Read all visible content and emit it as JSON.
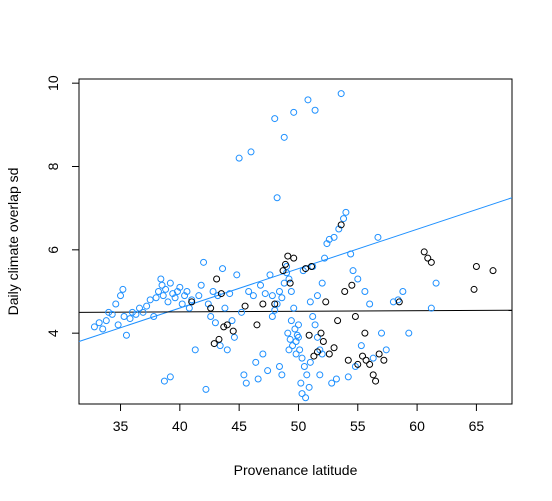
{
  "chart_data": {
    "type": "scatter",
    "title": "",
    "xlabel": "Provenance latitude",
    "ylabel": "Daily climate overlap sd",
    "xlim": [
      31.5,
      68
    ],
    "ylim": [
      2.3,
      10.1
    ],
    "x_ticks": [
      35,
      40,
      45,
      50,
      55,
      60,
      65
    ],
    "y_ticks": [
      4,
      6,
      8,
      10
    ],
    "grid": false,
    "legend": "none",
    "series": [
      {
        "color": "#1e90ff",
        "points": [
          [
            32.8,
            4.15
          ],
          [
            33.2,
            4.25
          ],
          [
            33.5,
            4.1
          ],
          [
            33.8,
            4.3
          ],
          [
            34.0,
            4.5
          ],
          [
            34.3,
            4.45
          ],
          [
            34.6,
            4.7
          ],
          [
            34.8,
            4.2
          ],
          [
            35.0,
            4.9
          ],
          [
            35.2,
            5.05
          ],
          [
            35.3,
            4.4
          ],
          [
            35.5,
            3.95
          ],
          [
            35.8,
            4.35
          ],
          [
            36.0,
            4.5
          ],
          [
            36.3,
            4.45
          ],
          [
            36.6,
            4.6
          ],
          [
            36.9,
            4.5
          ],
          [
            37.2,
            4.65
          ],
          [
            37.5,
            4.8
          ],
          [
            37.8,
            4.4
          ],
          [
            38.0,
            4.85
          ],
          [
            38.2,
            5.0
          ],
          [
            38.4,
            5.3
          ],
          [
            38.5,
            5.15
          ],
          [
            38.6,
            4.9
          ],
          [
            38.8,
            5.05
          ],
          [
            39.0,
            4.75
          ],
          [
            39.2,
            5.2
          ],
          [
            39.4,
            4.95
          ],
          [
            39.6,
            4.85
          ],
          [
            39.8,
            5.0
          ],
          [
            40.0,
            5.1
          ],
          [
            40.2,
            4.7
          ],
          [
            40.4,
            4.9
          ],
          [
            40.6,
            5.0
          ],
          [
            40.8,
            4.6
          ],
          [
            41.0,
            4.8
          ],
          [
            41.3,
            3.6
          ],
          [
            38.7,
            2.85
          ],
          [
            39.2,
            2.95
          ],
          [
            41.6,
            4.9
          ],
          [
            41.8,
            5.15
          ],
          [
            42.0,
            5.7
          ],
          [
            42.2,
            2.65
          ],
          [
            42.4,
            4.7
          ],
          [
            42.6,
            4.4
          ],
          [
            42.8,
            5.0
          ],
          [
            43.0,
            4.25
          ],
          [
            43.2,
            4.9
          ],
          [
            43.4,
            3.7
          ],
          [
            43.6,
            5.55
          ],
          [
            43.8,
            4.6
          ],
          [
            44.0,
            3.6
          ],
          [
            44.2,
            4.95
          ],
          [
            44.4,
            4.3
          ],
          [
            44.6,
            3.9
          ],
          [
            44.8,
            5.4
          ],
          [
            45.0,
            8.2
          ],
          [
            45.2,
            4.5
          ],
          [
            45.4,
            3.0
          ],
          [
            45.6,
            2.8
          ],
          [
            45.8,
            5.0
          ],
          [
            46.0,
            8.35
          ],
          [
            46.2,
            4.9
          ],
          [
            46.4,
            3.3
          ],
          [
            46.6,
            2.9
          ],
          [
            46.8,
            5.15
          ],
          [
            47.0,
            3.5
          ],
          [
            47.2,
            4.95
          ],
          [
            47.4,
            3.1
          ],
          [
            47.6,
            5.4
          ],
          [
            47.8,
            4.9
          ],
          [
            48.0,
            9.15
          ],
          [
            48.2,
            7.25
          ],
          [
            48.4,
            3.2
          ],
          [
            48.6,
            3.0
          ],
          [
            48.8,
            8.7
          ],
          [
            49.0,
            5.6
          ],
          [
            49.2,
            3.6
          ],
          [
            49.4,
            4.3
          ],
          [
            49.6,
            9.3
          ],
          [
            49.8,
            3.8
          ],
          [
            50.0,
            4.2
          ],
          [
            50.2,
            2.8
          ],
          [
            50.4,
            5.5
          ],
          [
            50.6,
            2.45
          ],
          [
            50.8,
            9.6
          ],
          [
            51.0,
            3.3
          ],
          [
            51.2,
            5.6
          ],
          [
            51.4,
            9.35
          ],
          [
            51.6,
            4.9
          ],
          [
            51.8,
            3.0
          ],
          [
            52.0,
            5.2
          ],
          [
            52.2,
            5.8
          ],
          [
            52.4,
            6.15
          ],
          [
            52.6,
            6.25
          ],
          [
            52.8,
            2.8
          ],
          [
            53.0,
            6.3
          ],
          [
            53.2,
            2.9
          ],
          [
            53.4,
            6.5
          ],
          [
            53.6,
            9.75
          ],
          [
            53.8,
            6.75
          ],
          [
            54.0,
            6.9
          ],
          [
            54.2,
            2.95
          ],
          [
            54.4,
            5.9
          ],
          [
            54.6,
            5.5
          ],
          [
            54.8,
            3.2
          ],
          [
            55.0,
            5.3
          ],
          [
            55.3,
            3.7
          ],
          [
            55.6,
            5.0
          ],
          [
            56.0,
            4.7
          ],
          [
            56.3,
            3.4
          ],
          [
            56.7,
            6.3
          ],
          [
            57.0,
            4.0
          ],
          [
            57.4,
            3.6
          ],
          [
            58.0,
            4.75
          ],
          [
            58.4,
            4.8
          ],
          [
            58.8,
            5.0
          ],
          [
            59.3,
            4.0
          ],
          [
            61.2,
            4.6
          ],
          [
            61.6,
            5.2
          ],
          [
            49.1,
            4.0
          ],
          [
            49.3,
            3.85
          ],
          [
            49.5,
            3.7
          ],
          [
            49.7,
            4.1
          ],
          [
            49.9,
            3.95
          ],
          [
            50.1,
            3.6
          ],
          [
            50.3,
            3.4
          ],
          [
            50.5,
            3.2
          ],
          [
            50.7,
            3.0
          ],
          [
            50.9,
            2.7
          ],
          [
            50.3,
            2.55
          ],
          [
            49.8,
            3.5
          ],
          [
            50.0,
            3.9
          ],
          [
            49.6,
            4.6
          ],
          [
            49.4,
            5.0
          ],
          [
            49.2,
            5.3
          ],
          [
            49.0,
            5.45
          ],
          [
            48.8,
            5.2
          ],
          [
            48.6,
            4.85
          ],
          [
            48.4,
            5.0
          ],
          [
            48.2,
            4.7
          ],
          [
            48.0,
            4.55
          ],
          [
            47.8,
            4.4
          ],
          [
            51.0,
            4.75
          ],
          [
            51.2,
            4.4
          ],
          [
            51.4,
            4.2
          ],
          [
            51.6,
            3.9
          ],
          [
            51.8,
            3.6
          ],
          [
            52.0,
            3.5
          ]
        ]
      },
      {
        "color": "#000000",
        "points": [
          [
            41.0,
            4.75
          ],
          [
            42.6,
            4.6
          ],
          [
            42.9,
            3.75
          ],
          [
            43.1,
            5.3
          ],
          [
            43.3,
            3.85
          ],
          [
            43.5,
            4.95
          ],
          [
            43.7,
            4.15
          ],
          [
            44.0,
            4.2
          ],
          [
            44.5,
            4.05
          ],
          [
            45.5,
            4.65
          ],
          [
            46.5,
            4.2
          ],
          [
            47.0,
            4.7
          ],
          [
            48.0,
            4.7
          ],
          [
            48.7,
            5.5
          ],
          [
            48.9,
            5.65
          ],
          [
            49.1,
            5.85
          ],
          [
            49.3,
            5.2
          ],
          [
            49.6,
            5.8
          ],
          [
            50.6,
            5.55
          ],
          [
            50.9,
            3.95
          ],
          [
            51.1,
            5.6
          ],
          [
            51.3,
            3.45
          ],
          [
            51.6,
            3.55
          ],
          [
            51.9,
            4.0
          ],
          [
            52.1,
            3.8
          ],
          [
            52.3,
            4.75
          ],
          [
            52.6,
            3.5
          ],
          [
            53.0,
            3.65
          ],
          [
            53.3,
            4.3
          ],
          [
            53.6,
            6.6
          ],
          [
            53.9,
            5.0
          ],
          [
            54.2,
            3.35
          ],
          [
            54.5,
            5.15
          ],
          [
            54.8,
            4.4
          ],
          [
            55.0,
            3.25
          ],
          [
            55.4,
            3.45
          ],
          [
            55.7,
            3.35
          ],
          [
            56.0,
            3.25
          ],
          [
            56.3,
            3.0
          ],
          [
            56.5,
            2.85
          ],
          [
            56.8,
            3.5
          ],
          [
            57.2,
            3.35
          ],
          [
            58.5,
            4.75
          ],
          [
            60.6,
            5.95
          ],
          [
            60.9,
            5.8
          ],
          [
            61.2,
            5.7
          ],
          [
            64.8,
            5.05
          ],
          [
            65.0,
            5.6
          ],
          [
            66.4,
            5.5
          ],
          [
            55.6,
            4.0
          ]
        ]
      }
    ],
    "lines": [
      {
        "color": "#1e90ff",
        "x": [
          31.5,
          68
        ],
        "y": [
          3.8,
          7.25
        ]
      },
      {
        "color": "#000000",
        "x": [
          31.5,
          68
        ],
        "y": [
          4.5,
          4.55
        ]
      }
    ]
  }
}
